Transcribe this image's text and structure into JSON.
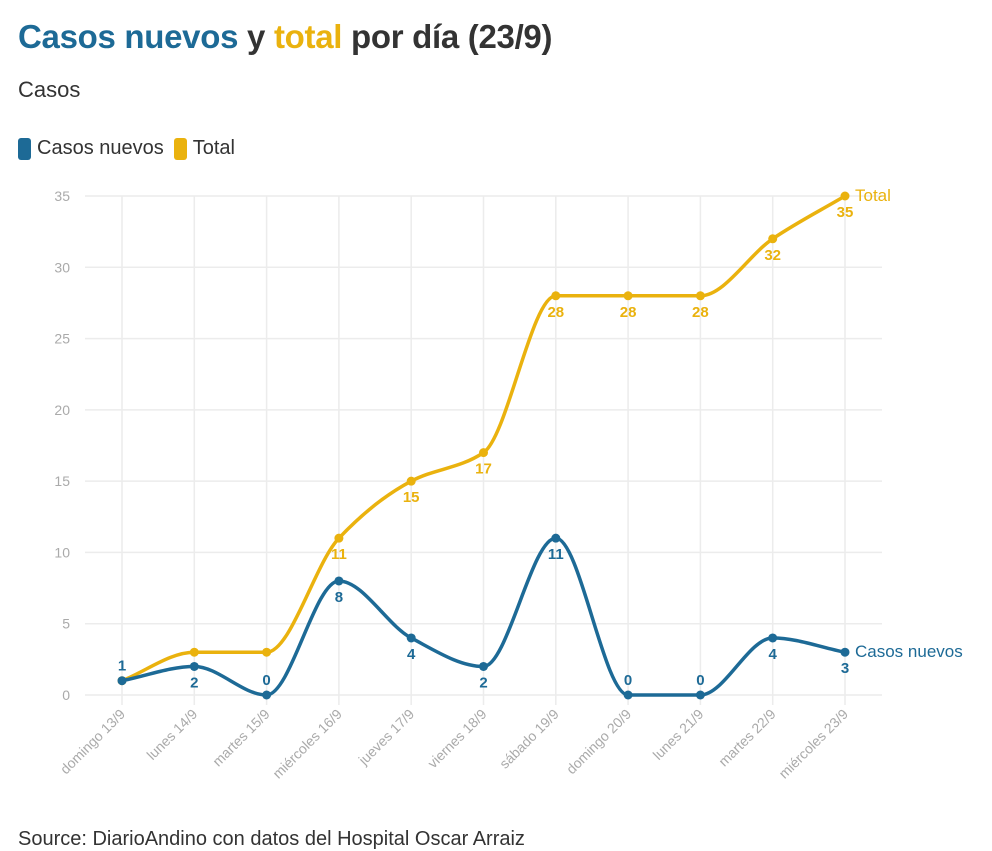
{
  "title": {
    "part1": "Casos nuevos",
    "part2": " y ",
    "part3": "total",
    "part4": " por día (23/9)"
  },
  "subtitle": "Casos",
  "legend": [
    {
      "label": "Casos nuevos",
      "color": "#1d6a96"
    },
    {
      "label": "Total",
      "color": "#eab20e"
    }
  ],
  "source": "Source: DiarioAndino con datos del Hospital Oscar Arraiz",
  "chart_data": {
    "type": "line",
    "title": "Casos nuevos y total por día (23/9)",
    "ylabel": "Casos",
    "ylim": [
      0,
      35
    ],
    "yticks": [
      0,
      5,
      10,
      15,
      20,
      25,
      30,
      35
    ],
    "grid": true,
    "legend_position": "top-left",
    "categories": [
      "domingo 13/9",
      "lunes 14/9",
      "martes 15/9",
      "miércoles 16/9",
      "jueves 17/9",
      "viernes 18/9",
      "sábado 19/9",
      "domingo 20/9",
      "lunes 21/9",
      "martes 22/9",
      "miércoles 23/9"
    ],
    "series": [
      {
        "name": "Casos nuevos",
        "color": "#1d6a96",
        "values": [
          1,
          2,
          0,
          8,
          4,
          2,
          11,
          0,
          0,
          4,
          3
        ],
        "label_pos": [
          "above",
          "below",
          "above",
          "below",
          "below",
          "below",
          "below",
          "above",
          "above",
          "below",
          "below"
        ]
      },
      {
        "name": "Total",
        "color": "#eab20e",
        "values": [
          1,
          3,
          3,
          11,
          15,
          17,
          28,
          28,
          28,
          32,
          35
        ],
        "label_pos": [
          "none",
          "none",
          "none",
          "below",
          "below",
          "below",
          "below",
          "below",
          "below",
          "below",
          "below"
        ]
      }
    ]
  }
}
